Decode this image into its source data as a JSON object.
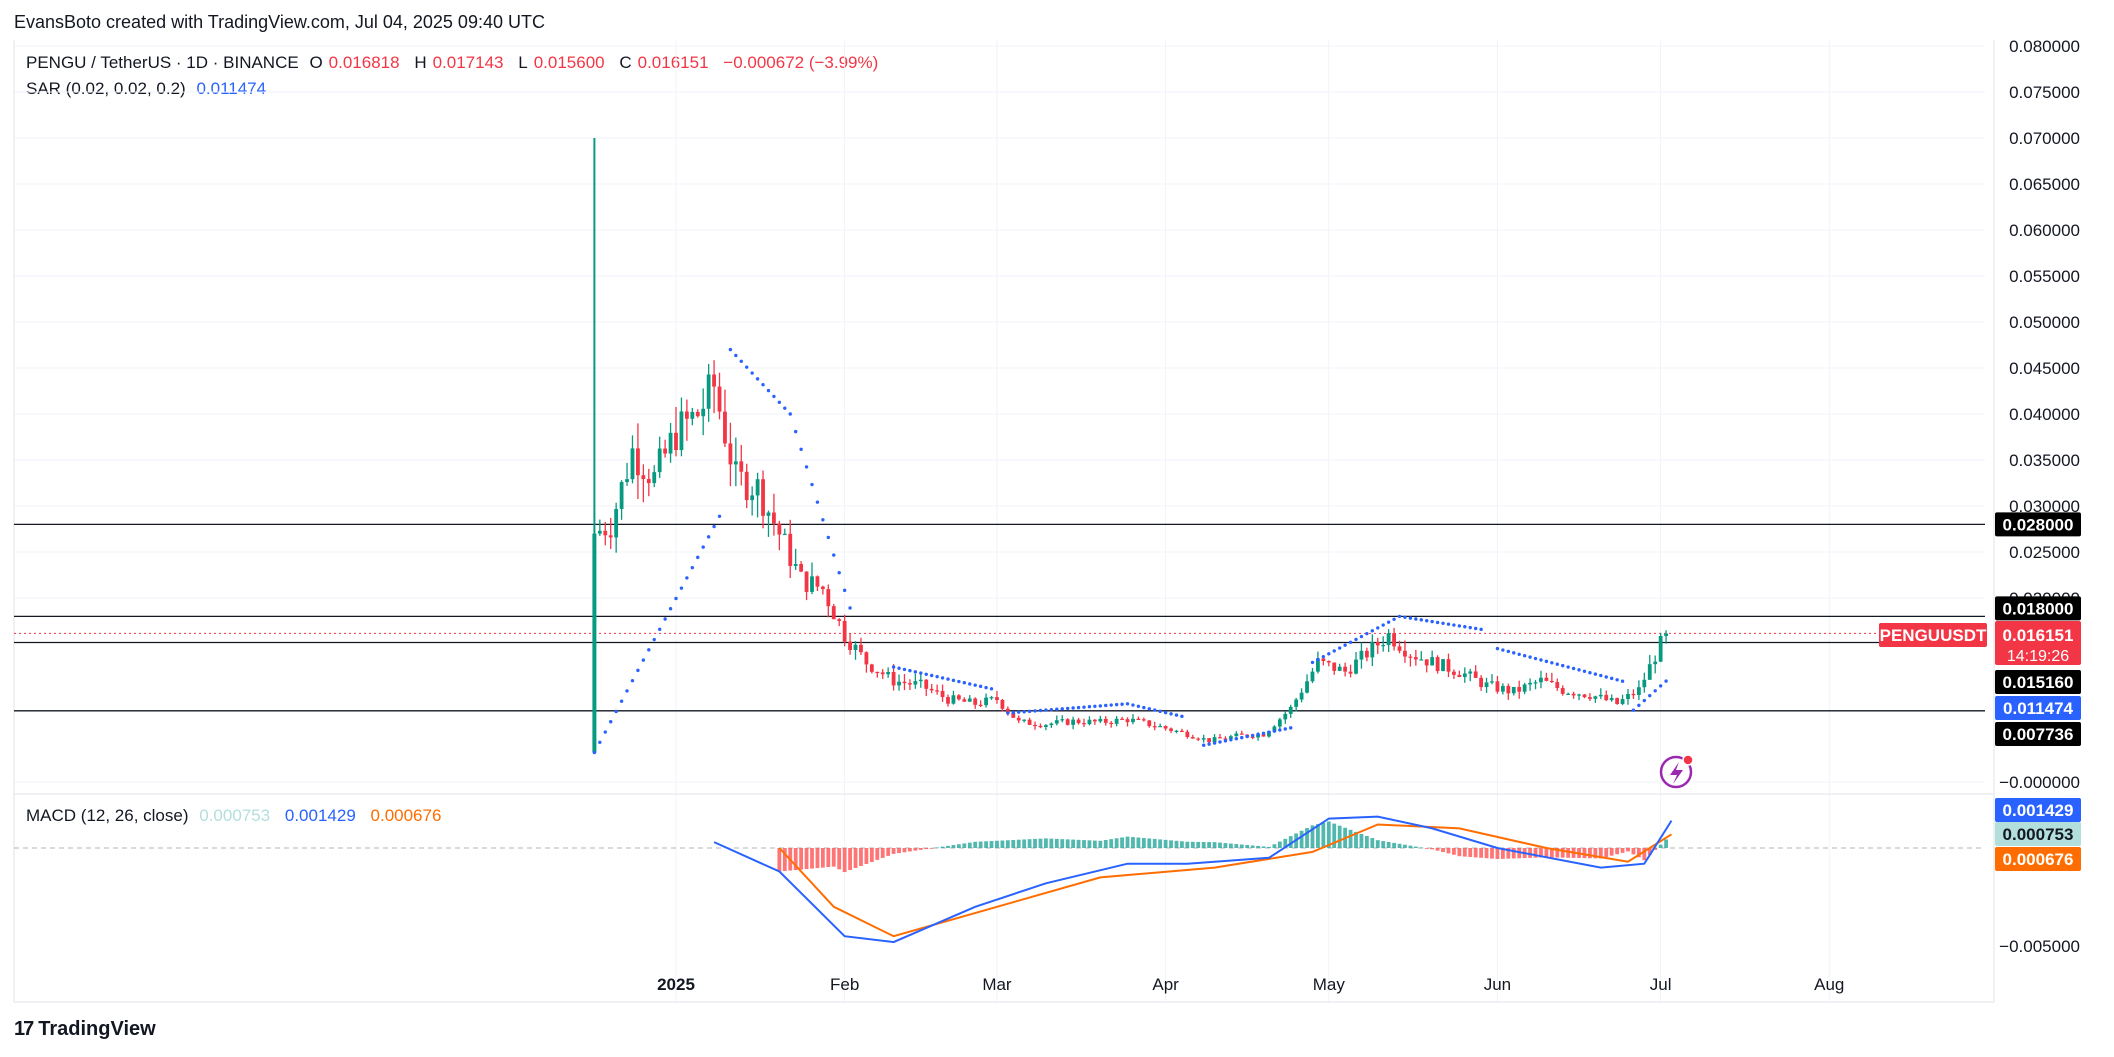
{
  "credit": "EvansBoto created with TradingView.com, Jul 04, 2025 09:40 UTC",
  "brand": "TradingView",
  "legend": {
    "symbol": "PENGU / TetherUS · 1D · BINANCE",
    "o_label": "O",
    "o": "0.016818",
    "h_label": "H",
    "h": "0.017143",
    "l_label": "L",
    "l": "0.015600",
    "c_label": "C",
    "c": "0.016151",
    "change": "−0.000672 (−3.99%)",
    "sar_label": "SAR (0.02, 0.02, 0.2)",
    "sar_value": "0.011474",
    "macd_label": "MACD (12, 26, close)",
    "macd_hist": "0.000753",
    "macd_line": "0.001429",
    "macd_signal": "0.000676"
  },
  "colors": {
    "up": "#089981",
    "down": "#f23645",
    "sar": "#2962ff",
    "macd": "#2962ff",
    "signal": "#ff6d00",
    "hist_up": "#26a69a",
    "hist_down": "#ff5252"
  },
  "chart_data": [
    {
      "type": "candlestick",
      "symbol": "PENGUUSDT",
      "y_axis_ticks": [
        "0.080000",
        "0.075000",
        "0.070000",
        "0.065000",
        "0.060000",
        "0.055000",
        "0.050000",
        "0.045000",
        "0.040000",
        "0.035000",
        "0.030000",
        "0.025000",
        "0.020000",
        "−0.000000"
      ],
      "x_axis_ticks": [
        "2025",
        "Feb",
        "Mar",
        "Apr",
        "May",
        "Jun",
        "Jul",
        "Aug"
      ],
      "ylim": [
        0,
        0.08
      ],
      "horizontal_levels": [
        "0.028000",
        "0.018000",
        "0.015160",
        "0.007736"
      ],
      "price_labels": {
        "symbol": "PENGUUSDT",
        "price": "0.016151",
        "countdown": "14:19:26",
        "sar": "0.011474"
      },
      "closes_approx": [
        {
          "x": "2024-12-17",
          "y": 0.027
        },
        {
          "x": "2024-12-20",
          "y": 0.028
        },
        {
          "x": "2024-12-24",
          "y": 0.036
        },
        {
          "x": "2024-12-28",
          "y": 0.033
        },
        {
          "x": "2025-01-01",
          "y": 0.038
        },
        {
          "x": "2025-01-05",
          "y": 0.04
        },
        {
          "x": "2025-01-08",
          "y": 0.043
        },
        {
          "x": "2025-01-12",
          "y": 0.033
        },
        {
          "x": "2025-01-16",
          "y": 0.032
        },
        {
          "x": "2025-01-20",
          "y": 0.027
        },
        {
          "x": "2025-01-24",
          "y": 0.022
        },
        {
          "x": "2025-01-28",
          "y": 0.021
        },
        {
          "x": "2025-02-01",
          "y": 0.016
        },
        {
          "x": "2025-02-05",
          "y": 0.013
        },
        {
          "x": "2025-02-10",
          "y": 0.011
        },
        {
          "x": "2025-02-15",
          "y": 0.0105
        },
        {
          "x": "2025-02-20",
          "y": 0.009
        },
        {
          "x": "2025-02-25",
          "y": 0.0085
        },
        {
          "x": "2025-03-01",
          "y": 0.009
        },
        {
          "x": "2025-03-05",
          "y": 0.0065
        },
        {
          "x": "2025-03-10",
          "y": 0.0063
        },
        {
          "x": "2025-03-15",
          "y": 0.0066
        },
        {
          "x": "2025-03-20",
          "y": 0.0065
        },
        {
          "x": "2025-03-25",
          "y": 0.0068
        },
        {
          "x": "2025-03-31",
          "y": 0.006
        },
        {
          "x": "2025-04-05",
          "y": 0.0052
        },
        {
          "x": "2025-04-09",
          "y": 0.0045
        },
        {
          "x": "2025-04-14",
          "y": 0.005
        },
        {
          "x": "2025-04-19",
          "y": 0.0052
        },
        {
          "x": "2025-04-24",
          "y": 0.008
        },
        {
          "x": "2025-04-29",
          "y": 0.013
        },
        {
          "x": "2025-05-04",
          "y": 0.012
        },
        {
          "x": "2025-05-08",
          "y": 0.014
        },
        {
          "x": "2025-05-12",
          "y": 0.016
        },
        {
          "x": "2025-05-16",
          "y": 0.014
        },
        {
          "x": "2025-05-20",
          "y": 0.013
        },
        {
          "x": "2025-05-25",
          "y": 0.012
        },
        {
          "x": "2025-05-30",
          "y": 0.0105
        },
        {
          "x": "2025-06-04",
          "y": 0.0098
        },
        {
          "x": "2025-06-09",
          "y": 0.011
        },
        {
          "x": "2025-06-13",
          "y": 0.01
        },
        {
          "x": "2025-06-18",
          "y": 0.0095
        },
        {
          "x": "2025-06-23",
          "y": 0.0085
        },
        {
          "x": "2025-06-27",
          "y": 0.01
        },
        {
          "x": "2025-07-01",
          "y": 0.015
        },
        {
          "x": "2025-07-03",
          "y": 0.0162
        }
      ]
    },
    {
      "type": "line",
      "name": "MACD (12, 26, close)",
      "y_axis_ticks": [
        "−0.005000"
      ],
      "value_labels": [
        "0.001429",
        "0.000753",
        "0.000676"
      ]
    }
  ]
}
